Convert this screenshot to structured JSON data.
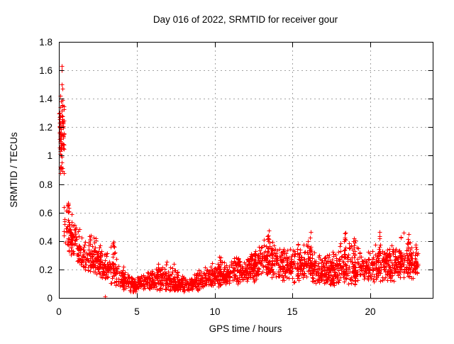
{
  "window": {
    "background_color": "#ffffff"
  },
  "chart_data": {
    "type": "scatter",
    "title": "Day 016 of 2022, SRMTID for receiver gour",
    "xlabel": "GPS time / hours",
    "ylabel": "SRMTID / TECUs",
    "xlim": [
      0,
      24
    ],
    "ylim": [
      0,
      1.8
    ],
    "xticks": [
      0,
      5,
      10,
      15,
      20
    ],
    "xtick_labels": [
      "0",
      "5",
      "10",
      "15",
      "20"
    ],
    "yticks": [
      0,
      0.2,
      0.4,
      0.6,
      0.8,
      1,
      1.2,
      1.4,
      1.6,
      1.8
    ],
    "ytick_labels": [
      "0",
      "0.2",
      "0.4",
      "0.6",
      "0.8",
      "1",
      "1.2",
      "1.4",
      "1.6",
      "1.8"
    ],
    "legend": "none",
    "grid": {
      "visible": true,
      "style": "dotted",
      "color": "#a3a3a3"
    },
    "axis_color": "#000000",
    "marker": {
      "symbol": "plus",
      "color": "#ff0000",
      "size": 7
    },
    "description": "Dense red plus-marker scatter: very high values (0.85-1.63 TECUs) in the first ~0.3 h, rapid decay to ~0.4-0.7 by 0.5 h, slow decline to a minimum band of 0.04-0.18 around 4.5-9 h, then gradual rise with spiky clusters of 0.3-0.47 between 13-23 h; data ends near 23 h.",
    "scatter_model": {
      "seed": 20220116,
      "base_count": 2100,
      "t_range": [
        0.3,
        23.05
      ],
      "envelope": [
        [
          0.0,
          0.85,
          1.4
        ],
        [
          0.3,
          0.35,
          0.7
        ],
        [
          0.7,
          0.3,
          0.66
        ],
        [
          1.0,
          0.25,
          0.55
        ],
        [
          1.4,
          0.2,
          0.47
        ],
        [
          1.8,
          0.18,
          0.45
        ],
        [
          2.3,
          0.17,
          0.44
        ],
        [
          2.8,
          0.12,
          0.35
        ],
        [
          3.5,
          0.09,
          0.4
        ],
        [
          4.0,
          0.06,
          0.22
        ],
        [
          4.8,
          0.04,
          0.15
        ],
        [
          5.5,
          0.05,
          0.18
        ],
        [
          6.3,
          0.05,
          0.24
        ],
        [
          7.0,
          0.05,
          0.24
        ],
        [
          7.7,
          0.04,
          0.18
        ],
        [
          8.3,
          0.04,
          0.15
        ],
        [
          9.0,
          0.06,
          0.2
        ],
        [
          9.8,
          0.08,
          0.26
        ],
        [
          10.5,
          0.08,
          0.27
        ],
        [
          11.3,
          0.1,
          0.32
        ],
        [
          12.0,
          0.1,
          0.3
        ],
        [
          12.7,
          0.12,
          0.36
        ],
        [
          13.4,
          0.15,
          0.46
        ],
        [
          14.0,
          0.12,
          0.42
        ],
        [
          14.6,
          0.1,
          0.35
        ],
        [
          15.3,
          0.1,
          0.42
        ],
        [
          16.1,
          0.1,
          0.45
        ],
        [
          16.8,
          0.08,
          0.3
        ],
        [
          17.5,
          0.06,
          0.34
        ],
        [
          18.3,
          0.1,
          0.45
        ],
        [
          19.0,
          0.08,
          0.43
        ],
        [
          19.8,
          0.1,
          0.35
        ],
        [
          20.5,
          0.12,
          0.45
        ],
        [
          21.2,
          0.1,
          0.38
        ],
        [
          21.9,
          0.12,
          0.43
        ],
        [
          22.5,
          0.12,
          0.42
        ],
        [
          23.05,
          0.15,
          0.38
        ]
      ],
      "startup_cluster": {
        "t_range": [
          0.02,
          0.32
        ],
        "y_range": [
          0.85,
          1.42
        ],
        "count": 80
      },
      "spike_columns": [
        [
          0.55,
          12,
          0.35,
          0.67
        ],
        [
          0.85,
          9,
          0.3,
          0.62
        ],
        [
          1.25,
          8,
          0.25,
          0.5
        ],
        [
          2.0,
          10,
          0.2,
          0.46
        ],
        [
          2.35,
          10,
          0.18,
          0.43
        ],
        [
          3.5,
          12,
          0.1,
          0.42
        ],
        [
          4.15,
          6,
          0.06,
          0.22
        ],
        [
          5.8,
          6,
          0.05,
          0.17
        ],
        [
          6.35,
          8,
          0.06,
          0.26
        ],
        [
          6.9,
          8,
          0.06,
          0.28
        ],
        [
          7.35,
          7,
          0.05,
          0.26
        ],
        [
          8.9,
          6,
          0.05,
          0.18
        ],
        [
          9.8,
          7,
          0.08,
          0.26
        ],
        [
          10.35,
          8,
          0.1,
          0.3
        ],
        [
          11.45,
          8,
          0.1,
          0.33
        ],
        [
          12.6,
          8,
          0.12,
          0.36
        ],
        [
          13.4,
          14,
          0.18,
          0.47
        ],
        [
          13.65,
          12,
          0.2,
          0.45
        ],
        [
          14.35,
          8,
          0.12,
          0.4
        ],
        [
          15.35,
          10,
          0.12,
          0.43
        ],
        [
          16.1,
          12,
          0.12,
          0.46
        ],
        [
          17.05,
          6,
          0.08,
          0.3
        ],
        [
          17.6,
          8,
          0.06,
          0.34
        ],
        [
          18.35,
          12,
          0.12,
          0.46
        ],
        [
          19.0,
          10,
          0.1,
          0.44
        ],
        [
          19.9,
          8,
          0.12,
          0.36
        ],
        [
          20.55,
          12,
          0.14,
          0.46
        ],
        [
          21.25,
          8,
          0.12,
          0.38
        ],
        [
          21.95,
          10,
          0.14,
          0.44
        ],
        [
          22.45,
          10,
          0.14,
          0.44
        ],
        [
          22.9,
          8,
          0.15,
          0.38
        ]
      ],
      "outliers": [
        [
          0.17,
          1.63
        ],
        [
          0.19,
          1.6
        ],
        [
          0.2,
          1.5
        ],
        [
          0.22,
          1.47
        ],
        [
          0.1,
          1.42
        ],
        [
          0.33,
          0.88
        ],
        [
          2.95,
          0.012
        ],
        [
          13.5,
          0.475
        ],
        [
          16.15,
          0.465
        ],
        [
          18.4,
          0.46
        ],
        [
          20.6,
          0.462
        ],
        [
          22.15,
          0.46
        ],
        [
          22.45,
          0.45
        ]
      ]
    }
  }
}
